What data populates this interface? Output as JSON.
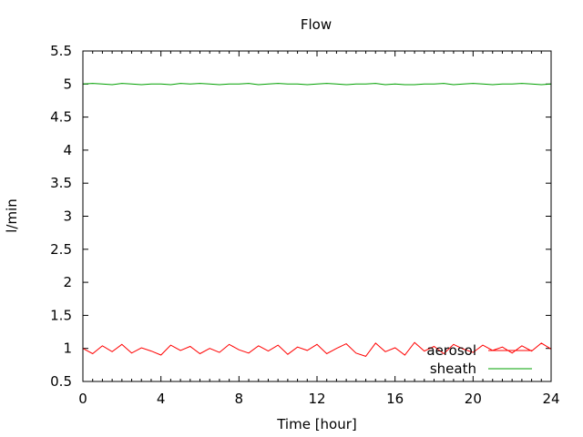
{
  "chart_data": {
    "type": "line",
    "title": "Flow",
    "xlabel": "Time [hour]",
    "ylabel": "l/min",
    "xlim": [
      0,
      24
    ],
    "ylim": [
      0.5,
      5.5
    ],
    "xticks": [
      0,
      4,
      8,
      12,
      16,
      20,
      24
    ],
    "yticks": [
      0.5,
      1,
      1.5,
      2,
      2.5,
      3,
      3.5,
      4,
      4.5,
      5,
      5.5
    ],
    "xtick_labels": [
      "0",
      "4",
      "8",
      "12",
      "16",
      "20",
      "24"
    ],
    "ytick_labels": [
      "0.5",
      "1",
      "1.5",
      "2",
      "2.5",
      "3",
      "3.5",
      "4",
      "4.5",
      "5",
      "5.5"
    ],
    "grid": false,
    "legend_position": "bottom-right",
    "series": [
      {
        "name": "aerosol",
        "color": "#ff0000",
        "x": [
          0,
          0.5,
          1,
          1.5,
          2,
          2.5,
          3,
          3.5,
          4,
          4.5,
          5,
          5.5,
          6,
          6.5,
          7,
          7.5,
          8,
          8.5,
          9,
          9.5,
          10,
          10.5,
          11,
          11.5,
          12,
          12.5,
          13,
          13.5,
          14,
          14.5,
          15,
          15.5,
          16,
          16.5,
          17,
          17.5,
          18,
          18.5,
          19,
          19.5,
          20,
          20.5,
          21,
          21.5,
          22,
          22.5,
          23,
          23.5,
          24
        ],
        "values": [
          1.0,
          0.92,
          1.04,
          0.95,
          1.06,
          0.93,
          1.01,
          0.96,
          0.9,
          1.05,
          0.97,
          1.03,
          0.92,
          1.0,
          0.94,
          1.06,
          0.98,
          0.93,
          1.04,
          0.96,
          1.05,
          0.91,
          1.02,
          0.97,
          1.06,
          0.92,
          1.0,
          1.07,
          0.93,
          0.88,
          1.08,
          0.95,
          1.01,
          0.9,
          1.09,
          0.96,
          1.03,
          0.92,
          1.06,
          0.99,
          0.94,
          1.05,
          0.97,
          1.02,
          0.93,
          1.04,
          0.96,
          1.08,
          0.99
        ]
      },
      {
        "name": "sheath",
        "color": "#00a000",
        "x": [
          0,
          0.5,
          1,
          1.5,
          2,
          2.5,
          3,
          3.5,
          4,
          4.5,
          5,
          5.5,
          6,
          6.5,
          7,
          7.5,
          8,
          8.5,
          9,
          9.5,
          10,
          10.5,
          11,
          11.5,
          12,
          12.5,
          13,
          13.5,
          14,
          14.5,
          15,
          15.5,
          16,
          16.5,
          17,
          17.5,
          18,
          18.5,
          19,
          19.5,
          20,
          20.5,
          21,
          21.5,
          22,
          22.5,
          23,
          23.5,
          24
        ],
        "values": [
          5.0,
          5.01,
          5.0,
          4.99,
          5.01,
          5.0,
          4.99,
          5.0,
          5.0,
          4.99,
          5.01,
          5.0,
          5.01,
          5.0,
          4.99,
          5.0,
          5.0,
          5.01,
          4.99,
          5.0,
          5.01,
          5.0,
          5.0,
          4.99,
          5.0,
          5.01,
          5.0,
          4.99,
          5.0,
          5.0,
          5.01,
          4.99,
          5.0,
          4.99,
          4.99,
          5.0,
          5.0,
          5.01,
          4.99,
          5.0,
          5.01,
          5.0,
          4.99,
          5.0,
          5.0,
          5.01,
          5.0,
          4.99,
          5.0
        ]
      }
    ]
  }
}
